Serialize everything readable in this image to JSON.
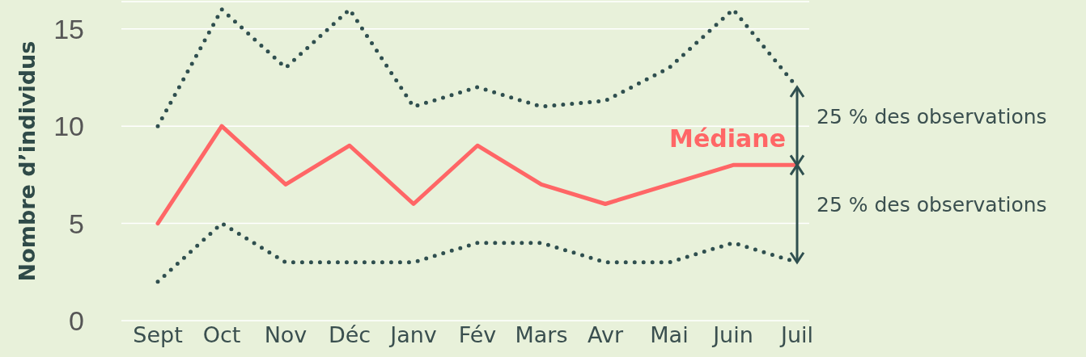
{
  "chart_data": {
    "type": "line",
    "ylabel": "Nombre d’individus",
    "categories": [
      "Sept",
      "Oct",
      "Nov",
      "Déc",
      "Janv",
      "Fév",
      "Mars",
      "Avr",
      "Mai",
      "Juin",
      "Juil"
    ],
    "ylim": [
      0,
      16.4
    ],
    "yticks": [
      0,
      5,
      10,
      15
    ],
    "grid": "y",
    "legend": false,
    "marker": "none",
    "series": [
      {
        "color": "#2f4f4f",
        "line_style": "dotted",
        "values": [
          10,
          16,
          13,
          16,
          11,
          12,
          11,
          11.3,
          13,
          16,
          12
        ]
      },
      {
        "name": "Médiane",
        "color": "#ff6666",
        "line_style": "solid",
        "values": [
          5,
          10,
          7,
          9,
          6,
          9,
          7,
          6,
          7,
          8,
          8
        ]
      },
      {
        "color": "#2f4f4f",
        "line_style": "dotted",
        "values": [
          2,
          5,
          3,
          3,
          3,
          4,
          4,
          3,
          3,
          4,
          3
        ]
      }
    ],
    "annotations": [
      "25 % des observations",
      "25 % des observations"
    ]
  }
}
